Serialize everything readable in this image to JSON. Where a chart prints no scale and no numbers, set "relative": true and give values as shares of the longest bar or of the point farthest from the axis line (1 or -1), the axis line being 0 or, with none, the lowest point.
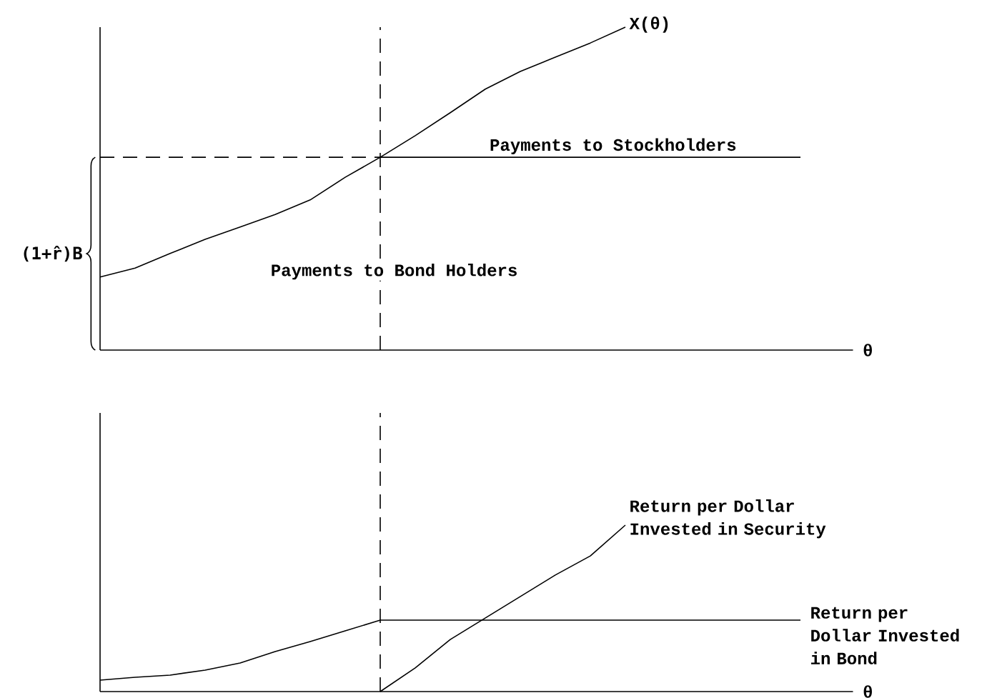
{
  "chart_data": [
    {
      "type": "line",
      "relative": true,
      "marker": "none",
      "xlabel": "θ",
      "categories": [
        null,
        null,
        null,
        null,
        null,
        null,
        null,
        null,
        null,
        null,
        null,
        null,
        null,
        null,
        null,
        null,
        null,
        null,
        null,
        null,
        null,
        null
      ],
      "series": [
        {
          "name": "X(θ)",
          "color": "#000000",
          "values": [
            0.226,
            0.254,
            0.299,
            0.343,
            0.381,
            0.42,
            0.465,
            0.535,
            0.597,
            0.664,
            0.735,
            0.808,
            0.863,
            0.907,
            0.951,
            1.0,
            null,
            null,
            null,
            null,
            null,
            null
          ]
        },
        {
          "color": "#000000",
          "values": [
            null,
            null,
            null,
            null,
            null,
            null,
            null,
            null,
            0.597,
            0.597,
            0.597,
            0.597,
            0.597,
            0.597,
            0.597,
            0.597,
            0.597,
            0.597,
            0.597,
            0.597,
            0.597,
            null
          ]
        },
        {
          "color": "#000000",
          "line_style": "dashed",
          "values": [
            0.597,
            0.597,
            0.597,
            0.597,
            0.597,
            0.597,
            0.597,
            0.597,
            0.597,
            null,
            null,
            null,
            null,
            null,
            null,
            null,
            null,
            null,
            null,
            null,
            null,
            null
          ]
        }
      ],
      "annotations": [
        "Payments to Stockholders",
        "Payments to Bond Holders",
        "(1+r̂)B"
      ]
    },
    {
      "type": "line",
      "relative": true,
      "marker": "none",
      "xlabel": "θ",
      "categories": [
        null,
        null,
        null,
        null,
        null,
        null,
        null,
        null,
        null,
        null,
        null,
        null,
        null,
        null,
        null,
        null,
        null,
        null,
        null,
        null,
        null,
        null
      ],
      "series": [
        {
          "name": "Return per Dollar Invested in Bond",
          "color": "#000000",
          "values": [
            0.069,
            0.086,
            0.099,
            0.129,
            0.172,
            0.24,
            0.3,
            0.365,
            0.429,
            0.429,
            0.429,
            0.429,
            0.429,
            0.429,
            0.429,
            0.429,
            0.429,
            0.429,
            0.429,
            0.429,
            0.429,
            null
          ]
        },
        {
          "name": "Return per Dollar Invested in Security",
          "color": "#000000",
          "values": [
            null,
            null,
            null,
            null,
            null,
            null,
            null,
            null,
            0,
            0.142,
            0.313,
            0.442,
            0.571,
            0.7,
            0.815,
            1.0,
            null,
            null,
            null,
            null,
            null,
            null
          ]
        }
      ]
    }
  ]
}
